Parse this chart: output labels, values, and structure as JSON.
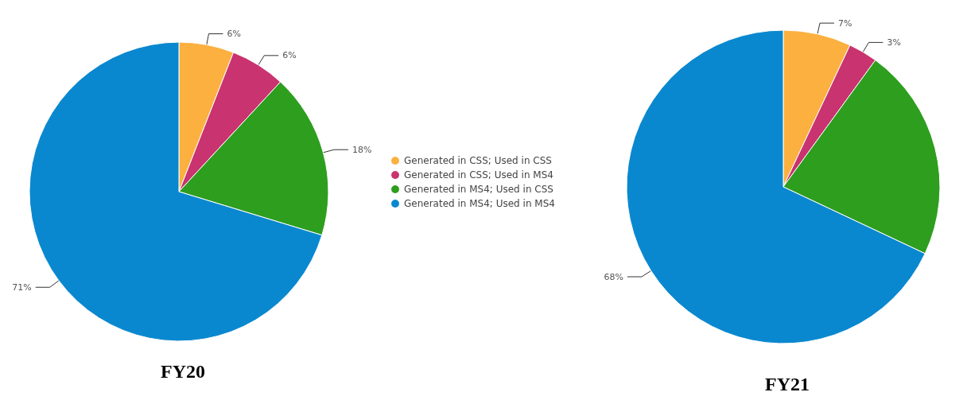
{
  "chart_data": [
    {
      "type": "pie",
      "title": "FY20",
      "categories": [
        "Generated in CSS; Used in CSS",
        "Generated in CSS; Used in MS4",
        "Generated in MS4; Used in CSS",
        "Generated in MS4; Used in MS4"
      ],
      "values": [
        6,
        6,
        18,
        71
      ],
      "colors": [
        "#fbb040",
        "#c9336f",
        "#2e9e1f",
        "#0a88cf"
      ],
      "value_labels": [
        "6%",
        "6%",
        "18%",
        "71%"
      ],
      "legend": "right"
    },
    {
      "type": "pie",
      "title": "FY21",
      "categories": [
        null,
        null,
        null,
        null
      ],
      "values": [
        7,
        3,
        22,
        68
      ],
      "colors": [
        "#fbb040",
        "#c9336f",
        "#2e9e1f",
        "#0a88cf"
      ],
      "value_labels": [
        "7%",
        "3%",
        null,
        "68%"
      ]
    }
  ]
}
